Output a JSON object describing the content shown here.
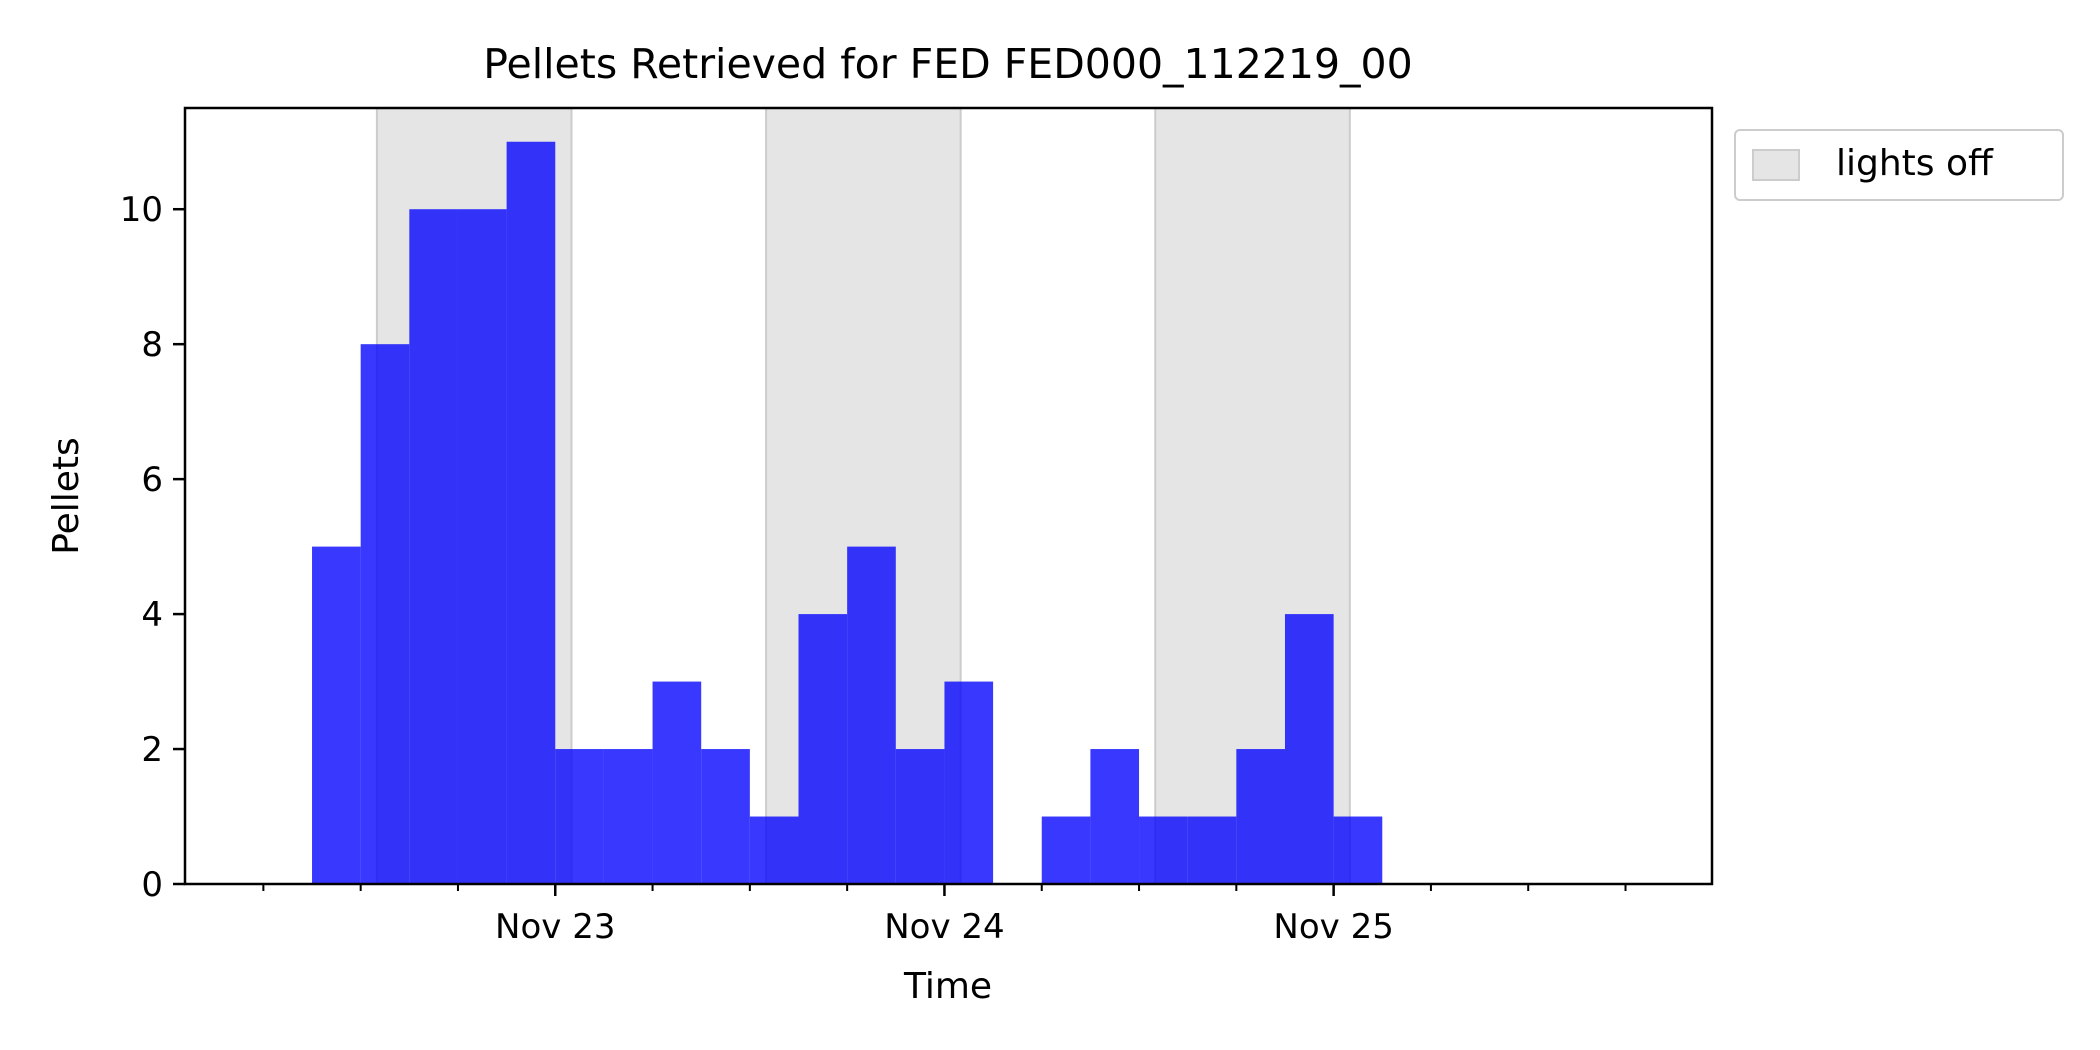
{
  "chart_data": {
    "type": "bar",
    "title": "Pellets Retrieved for FED FED000_112219_00",
    "xlabel": "Time",
    "ylabel": "Pellets",
    "bin_hours": 3,
    "x_tick_labels": [
      {
        "label": "Nov 23",
        "time": "2019-11-23T00:00"
      },
      {
        "label": "Nov 24",
        "time": "2019-11-24T00:00"
      },
      {
        "label": "Nov 25",
        "time": "2019-11-25T00:00"
      }
    ],
    "xlim": [
      "2019-11-22T01:10",
      "2019-11-25T23:20"
    ],
    "ylim": [
      0,
      11.5
    ],
    "y_ticks": [
      0,
      2,
      4,
      6,
      8,
      10
    ],
    "bars": [
      {
        "time": "2019-11-22T09:00",
        "value": 5
      },
      {
        "time": "2019-11-22T12:00",
        "value": 8
      },
      {
        "time": "2019-11-22T15:00",
        "value": 10
      },
      {
        "time": "2019-11-22T18:00",
        "value": 10
      },
      {
        "time": "2019-11-22T21:00",
        "value": 11
      },
      {
        "time": "2019-11-23T00:00",
        "value": 2
      },
      {
        "time": "2019-11-23T03:00",
        "value": 2
      },
      {
        "time": "2019-11-23T06:00",
        "value": 3
      },
      {
        "time": "2019-11-23T09:00",
        "value": 2
      },
      {
        "time": "2019-11-23T12:00",
        "value": 1
      },
      {
        "time": "2019-11-23T15:00",
        "value": 4
      },
      {
        "time": "2019-11-23T18:00",
        "value": 5
      },
      {
        "time": "2019-11-23T21:00",
        "value": 2
      },
      {
        "time": "2019-11-24T00:00",
        "value": 3
      },
      {
        "time": "2019-11-24T03:00",
        "value": 0
      },
      {
        "time": "2019-11-24T06:00",
        "value": 1
      },
      {
        "time": "2019-11-24T09:00",
        "value": 2
      },
      {
        "time": "2019-11-24T12:00",
        "value": 1
      },
      {
        "time": "2019-11-24T15:00",
        "value": 1
      },
      {
        "time": "2019-11-24T18:00",
        "value": 2
      },
      {
        "time": "2019-11-24T21:00",
        "value": 4
      },
      {
        "time": "2019-11-25T00:00",
        "value": 1
      }
    ],
    "lights_off": [
      {
        "start": "2019-11-22T13:00",
        "end": "2019-11-23T01:00"
      },
      {
        "start": "2019-11-23T13:00",
        "end": "2019-11-24T01:00"
      },
      {
        "start": "2019-11-24T13:00",
        "end": "2019-11-25T01:00"
      }
    ],
    "legend": {
      "label": "lights off",
      "position": "outside-top-right"
    },
    "grid": false,
    "colors": {
      "bars": "#0000ff",
      "lights_off": "#e5e5e5"
    }
  }
}
